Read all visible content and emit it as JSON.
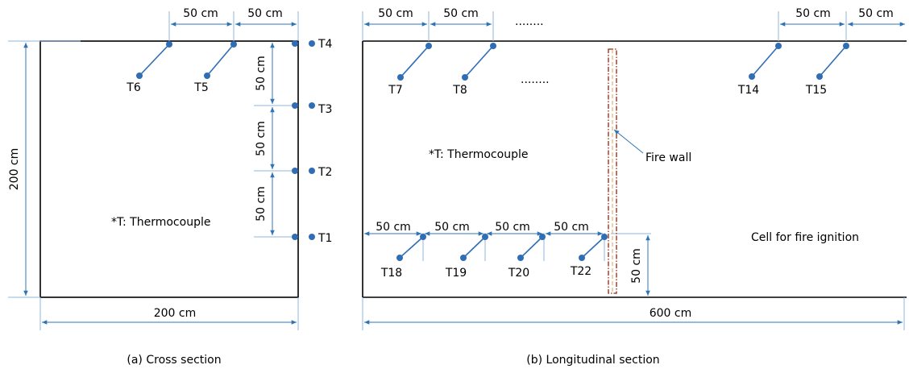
{
  "legend_note": "*T: Thermocouple",
  "cross_section": {
    "caption": "(a) Cross section",
    "width_label": "200 cm",
    "height_label": "200 cm",
    "top_spacing_labels": [
      "50 cm",
      "50 cm"
    ],
    "side_spacing_labels": [
      "50 cm",
      "50 cm",
      "50 cm"
    ],
    "sensors": [
      "T6",
      "T5",
      "T4",
      "T3",
      "T2",
      "T1"
    ]
  },
  "longitudinal_section": {
    "caption": "(b) Longitudinal section",
    "length_label": "600 cm",
    "top_spacing_labels": [
      "50 cm",
      "50 cm",
      "50 cm",
      "50 cm"
    ],
    "bottom_spacing_labels": [
      "50 cm",
      "50 cm",
      "50 cm",
      "50 cm"
    ],
    "height_label": "50 cm",
    "ellipsis": "........",
    "top_sensors": [
      "T7",
      "T8",
      "T14",
      "T15"
    ],
    "bottom_sensors": [
      "T18",
      "T19",
      "T20",
      "T22"
    ],
    "fire_wall_label": "Fire wall",
    "fire_cell_label": "Cell for fire ignition"
  },
  "colors": {
    "sensor": "#2f6db5",
    "dimension": "#2f75b5",
    "fire_wall": "#8b2a0f"
  }
}
